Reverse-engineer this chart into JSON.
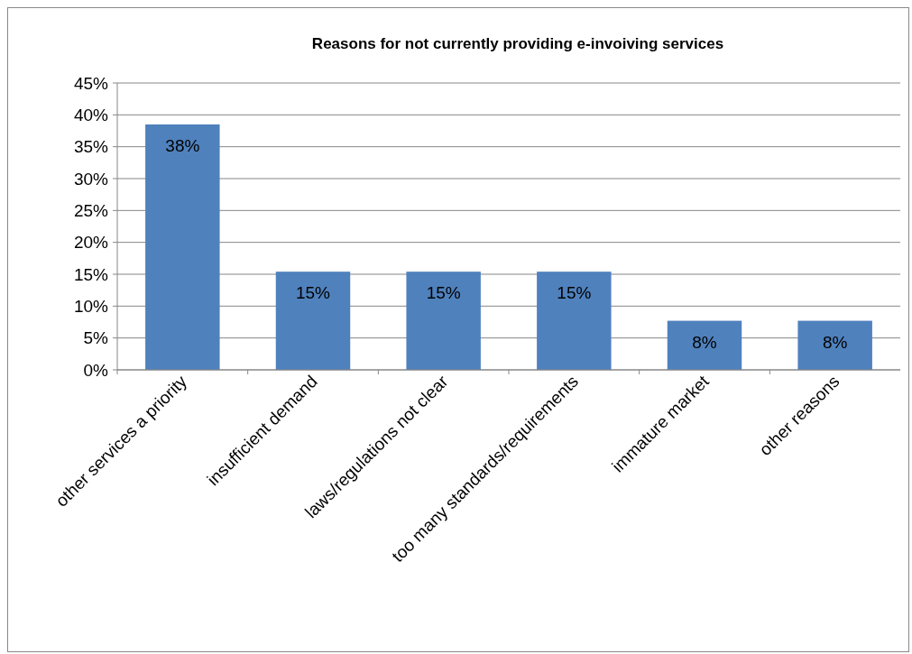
{
  "chart_data": {
    "type": "bar",
    "title": "Reasons for not currently providing e-invoiving services",
    "categories": [
      "other services a priority",
      "insufficient demand",
      "laws/regulations not clear",
      "too many standards/requirements",
      "immature market",
      "other reasons"
    ],
    "values": [
      38.5,
      15.4,
      15.4,
      15.4,
      7.7,
      7.7
    ],
    "value_labels": [
      "38%",
      "15%",
      "15%",
      "15%",
      "8%",
      "8%"
    ],
    "color": "#4f81bd",
    "ylim": [
      0,
      45
    ],
    "yticks": [
      {
        "value": 0,
        "label": "0%"
      },
      {
        "value": 5,
        "label": "5%"
      },
      {
        "value": 10,
        "label": "10%"
      },
      {
        "value": 15,
        "label": "15%"
      },
      {
        "value": 20,
        "label": "20%"
      },
      {
        "value": 25,
        "label": "25%"
      },
      {
        "value": 30,
        "label": "30%"
      },
      {
        "value": 35,
        "label": "35%"
      },
      {
        "value": 40,
        "label": "40%"
      },
      {
        "value": 45,
        "label": "45%"
      }
    ],
    "grid": "y"
  }
}
